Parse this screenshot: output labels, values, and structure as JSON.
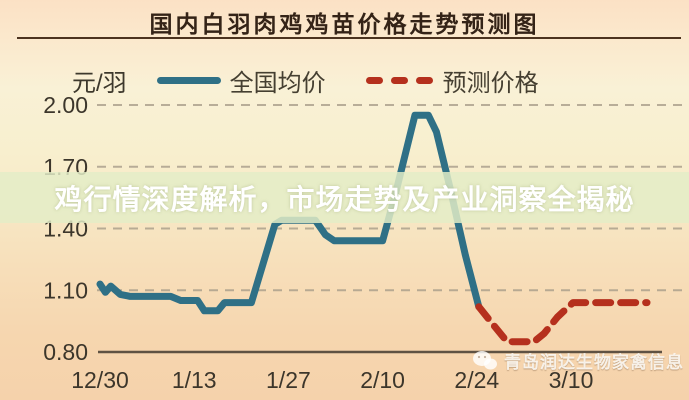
{
  "title": "国内白羽肉鸡鸡苗价格走势预测图",
  "overlay_banner": {
    "text": "鸡行情深度解析，市场走势及产业洞察全揭秘"
  },
  "watermark": {
    "icon": "wechat-icon",
    "text": "青岛润达生物家禽信息"
  },
  "legend": {
    "unit_label": "元/羽",
    "items": [
      {
        "label": "全国均价",
        "style": "solid",
        "color": "#2f7086"
      },
      {
        "label": "预测价格",
        "style": "dashed",
        "color": "#b5301d"
      }
    ]
  },
  "colors": {
    "actual_line": "#2f7086",
    "forecast_line": "#b5301d",
    "grid_line": "#a89d8a",
    "axis_line": "#5f5243",
    "tick_text": "#3c362b",
    "banner_bg": "rgba(228,237,199,0.84)",
    "title_text": "#342317"
  },
  "chart_data": {
    "type": "line",
    "title": "国内白羽肉鸡鸡苗价格走势预测图",
    "ylabel": "元/羽",
    "ylim": [
      0.8,
      2.0
    ],
    "ytick_labels": [
      "2.00",
      "1.70",
      "1.40",
      "1.10",
      "0.80"
    ],
    "ytick_values": [
      2.0,
      1.7,
      1.4,
      1.1,
      0.8
    ],
    "xtick_labels": [
      "12/30",
      "1/13",
      "1/27",
      "2/10",
      "2/24",
      "3/10"
    ],
    "xtick_days": [
      0,
      14,
      28,
      42,
      56,
      70
    ],
    "grid": "horizontal-dashed",
    "legend_position": "top",
    "series": [
      {
        "name": "全国均价",
        "style": "solid",
        "color": "#2f7086",
        "points": [
          [
            0,
            1.13
          ],
          [
            0.8,
            1.09
          ],
          [
            1.6,
            1.12
          ],
          [
            3,
            1.08
          ],
          [
            4.5,
            1.07
          ],
          [
            10.5,
            1.07
          ],
          [
            12,
            1.05
          ],
          [
            14.5,
            1.05
          ],
          [
            15.5,
            1.0
          ],
          [
            17.5,
            1.0
          ],
          [
            18.5,
            1.04
          ],
          [
            22.5,
            1.04
          ],
          [
            26,
            1.42
          ],
          [
            27,
            1.44
          ],
          [
            32,
            1.44
          ],
          [
            33.5,
            1.37
          ],
          [
            34.8,
            1.34
          ],
          [
            42,
            1.34
          ],
          [
            44,
            1.58
          ],
          [
            46.8,
            1.95
          ],
          [
            48.8,
            1.95
          ],
          [
            50,
            1.87
          ],
          [
            52,
            1.6
          ],
          [
            54.3,
            1.27
          ],
          [
            56.3,
            1.02
          ]
        ]
      },
      {
        "name": "预测价格",
        "style": "dashed",
        "color": "#b5301d",
        "points": [
          [
            56.3,
            1.02
          ],
          [
            58.5,
            0.93
          ],
          [
            60.5,
            0.85
          ],
          [
            64.5,
            0.85
          ],
          [
            66,
            0.89
          ],
          [
            68,
            0.97
          ],
          [
            70.3,
            1.04
          ],
          [
            81.3,
            1.04
          ]
        ]
      }
    ]
  }
}
